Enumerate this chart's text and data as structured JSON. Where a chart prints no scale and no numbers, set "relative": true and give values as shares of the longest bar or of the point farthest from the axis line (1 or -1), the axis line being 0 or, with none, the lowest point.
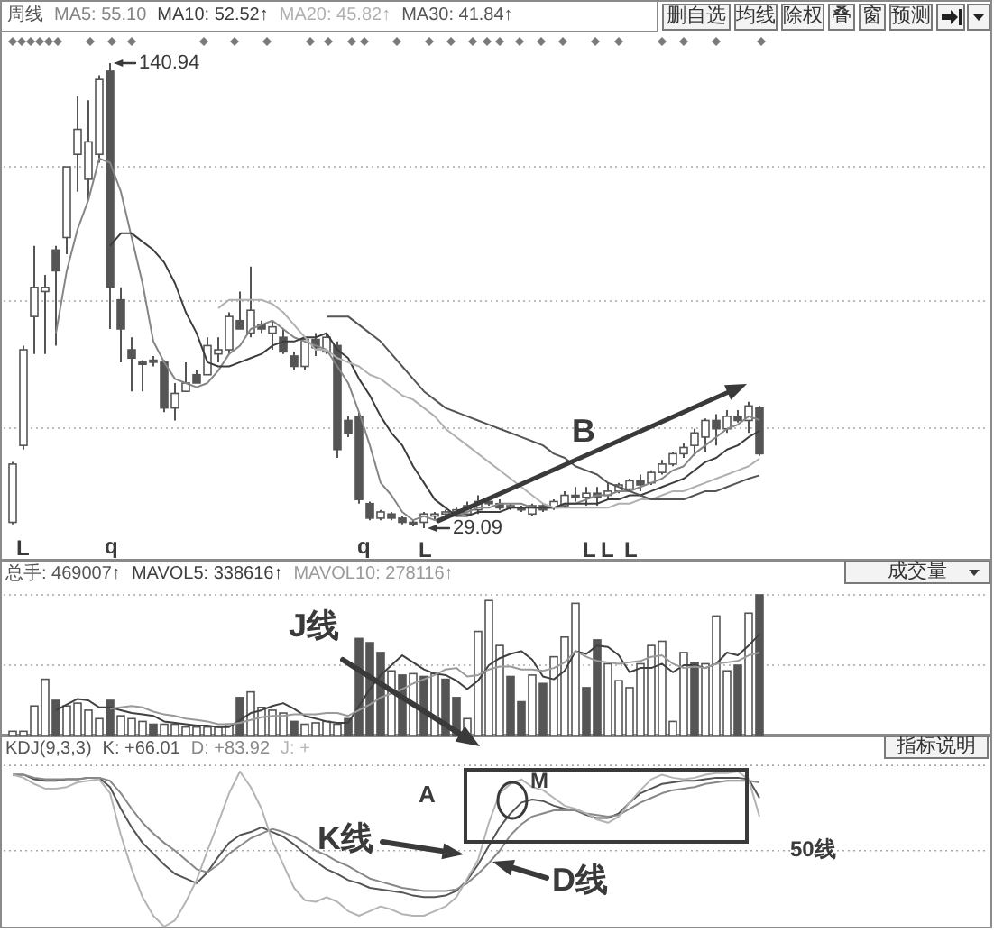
{
  "chart_data": [
    {
      "type": "candlestick",
      "title": "周线",
      "color": "#555555",
      "categories": [
        null,
        null,
        null,
        null,
        null,
        null,
        null,
        null,
        null,
        null,
        null,
        null,
        null,
        null,
        null,
        null,
        null,
        null,
        null,
        null,
        null,
        null,
        null,
        null,
        null,
        null,
        null,
        null,
        null,
        null,
        null,
        null,
        null,
        null,
        null,
        null,
        null,
        null,
        null,
        null,
        null,
        null,
        null,
        null,
        null,
        null,
        null,
        null,
        null,
        null,
        null,
        null,
        null,
        null,
        null,
        null,
        null,
        null,
        null,
        null,
        null,
        null,
        null,
        null,
        null,
        null,
        null,
        null,
        null,
        null
      ],
      "ohlc": [
        [
          30.5,
          45,
          30,
          44.5
        ],
        [
          49,
          73,
          48,
          72
        ],
        [
          80,
          97,
          71,
          87
        ],
        [
          86,
          90,
          71,
          87
        ],
        [
          96,
          97,
          73,
          91
        ],
        [
          99,
          116,
          95,
          116
        ],
        [
          119,
          133,
          110,
          125
        ],
        [
          113,
          132,
          108,
          122
        ],
        [
          119,
          138,
          117,
          137
        ],
        [
          139,
          140.94,
          77,
          87
        ],
        [
          84,
          87,
          69,
          77
        ],
        [
          72,
          75,
          62,
          70
        ],
        [
          69,
          69.5,
          62,
          68.5
        ],
        [
          69.5,
          70.5,
          68,
          69
        ],
        [
          69,
          69.5,
          57,
          58
        ],
        [
          58,
          64,
          55,
          61.5
        ],
        [
          62,
          69,
          62,
          64
        ],
        [
          66,
          67,
          64,
          64
        ],
        [
          66,
          75,
          66,
          73
        ],
        [
          71,
          75,
          69,
          72
        ],
        [
          72,
          81,
          71,
          80
        ],
        [
          79,
          86,
          77,
          77
        ],
        [
          76,
          92,
          75,
          81.5
        ],
        [
          78,
          79,
          76,
          77
        ],
        [
          76,
          79,
          72,
          77.5
        ],
        [
          75,
          77,
          71,
          71.5
        ],
        [
          70.5,
          71.5,
          67,
          68
        ],
        [
          68,
          75,
          67,
          74.5
        ],
        [
          74.5,
          76,
          70.5,
          72.5
        ],
        [
          71.5,
          76,
          71,
          75
        ],
        [
          73,
          74,
          46,
          48
        ],
        [
          55,
          56,
          51,
          52
        ],
        [
          56,
          57,
          35,
          36
        ],
        [
          35,
          35.5,
          31,
          31.5
        ],
        [
          31.5,
          33.5,
          31,
          33
        ],
        [
          32.5,
          33,
          31,
          31.5
        ],
        [
          31.5,
          32,
          30,
          30.5
        ],
        [
          30.5,
          31,
          29.5,
          30
        ],
        [
          30.5,
          33,
          29.09,
          32.5
        ],
        [
          32,
          33,
          31,
          32.5
        ],
        [
          32.5,
          33.5,
          32,
          33
        ],
        [
          33,
          34,
          32.5,
          33.5
        ],
        [
          32.5,
          35.5,
          32,
          34.5
        ],
        [
          33.5,
          37,
          32.5,
          35.5
        ],
        [
          35.5,
          36,
          34.5,
          35
        ],
        [
          35,
          36,
          33.5,
          34
        ],
        [
          34,
          35,
          33.5,
          34.5
        ],
        [
          34,
          34.5,
          33,
          33.5
        ],
        [
          32.5,
          35,
          32,
          34.5
        ],
        [
          34.5,
          35,
          33,
          33.5
        ],
        [
          34,
          36,
          33.5,
          35.5
        ],
        [
          34.5,
          38,
          34,
          37
        ],
        [
          37,
          39,
          35.5,
          36.5
        ],
        [
          36.5,
          39,
          34.5,
          37.5
        ],
        [
          37.5,
          39,
          34.5,
          36.5
        ],
        [
          37,
          40,
          36,
          38
        ],
        [
          38,
          40,
          37.5,
          39.5
        ],
        [
          38.5,
          41,
          38,
          40.5
        ],
        [
          40.5,
          42,
          38,
          39.5
        ],
        [
          40,
          43,
          39.5,
          42.5
        ],
        [
          42.5,
          45.5,
          42,
          44.5
        ],
        [
          44.5,
          47.5,
          44,
          47
        ],
        [
          47,
          49.5,
          46,
          48.5
        ],
        [
          49,
          53,
          46.5,
          52
        ],
        [
          51,
          55.5,
          47.5,
          55
        ],
        [
          55,
          56.5,
          49,
          53
        ],
        [
          53,
          57.5,
          52,
          56
        ],
        [
          56,
          57.5,
          54.5,
          55
        ],
        [
          55,
          59.5,
          52,
          58.5
        ],
        [
          58,
          58.5,
          46.5,
          47
        ]
      ],
      "series": [
        {
          "name": "MA5: 55.10",
          "type": "line",
          "color": "#858585",
          "values": [
            null,
            null,
            null,
            null,
            76,
            91,
            101,
            108,
            118,
            117,
            110,
            99,
            88,
            74,
            69,
            65,
            64,
            63,
            64,
            67,
            71,
            73,
            77,
            78,
            79,
            77,
            75,
            74,
            73,
            72,
            68,
            64,
            57,
            49,
            40,
            37,
            33,
            31,
            32,
            31,
            32,
            32,
            33,
            34,
            34,
            35,
            35,
            35,
            34,
            34,
            34,
            35,
            35,
            36,
            37,
            37,
            38,
            38,
            39,
            40,
            41,
            43,
            44,
            47,
            49,
            51,
            53,
            54,
            56,
            55.1
          ]
        },
        {
          "name": "MA10: 52.52↑",
          "type": "line",
          "color": "#3c3c3c",
          "values": [
            null,
            null,
            null,
            null,
            null,
            null,
            null,
            null,
            null,
            97,
            100,
            100,
            98,
            96,
            93,
            88,
            81,
            76,
            69,
            68,
            68,
            69,
            70,
            71,
            73,
            74,
            74,
            75,
            75,
            76,
            72,
            70,
            65,
            61,
            56,
            52,
            49,
            44,
            40,
            36,
            34,
            32,
            32,
            33,
            33,
            33,
            34,
            34,
            34,
            34,
            34,
            35,
            35,
            35,
            35,
            36,
            36,
            37,
            37,
            38,
            39,
            40,
            41,
            43,
            45,
            46,
            48,
            49,
            51,
            52.5
          ]
        },
        {
          "name": "MA20: 45.82↑",
          "type": "line",
          "color": "#b0b0b0",
          "values": [
            null,
            null,
            null,
            null,
            null,
            null,
            null,
            null,
            null,
            null,
            null,
            null,
            null,
            null,
            null,
            null,
            null,
            null,
            null,
            82,
            84,
            84,
            84,
            84,
            83,
            81,
            78,
            75,
            72,
            72,
            70,
            69,
            68,
            66,
            65,
            63,
            61,
            60,
            58,
            56,
            53,
            51,
            49,
            47,
            45,
            43,
            41,
            39,
            37,
            35,
            34,
            34,
            34,
            34,
            34,
            34,
            35,
            35,
            36,
            36,
            37,
            38,
            38,
            39,
            40,
            41,
            42,
            43,
            44,
            45.8
          ]
        },
        {
          "name": "MA30: 41.84↑",
          "type": "line",
          "color": "#555555",
          "values": [
            null,
            null,
            null,
            null,
            null,
            null,
            null,
            null,
            null,
            null,
            null,
            null,
            null,
            null,
            null,
            null,
            null,
            null,
            null,
            null,
            null,
            null,
            null,
            null,
            null,
            null,
            null,
            null,
            null,
            80,
            80,
            80,
            78,
            76,
            74,
            71,
            68,
            65,
            62,
            60,
            58,
            57,
            56,
            55,
            54,
            53,
            52,
            51,
            50,
            49,
            47,
            46,
            44,
            43,
            42,
            40,
            39,
            38,
            37,
            36,
            36,
            36,
            36,
            37,
            38,
            38,
            39,
            40,
            41,
            41.8
          ]
        }
      ],
      "legend": "top",
      "grid": "y",
      "tick_labels": false,
      "annotations": [
        "140.94",
        "29.09",
        "L",
        "q",
        "q",
        "L",
        "L",
        "L",
        "L",
        "B",
        "删自选",
        "均线",
        "除权",
        "叠",
        "窗",
        "预测"
      ]
    },
    {
      "type": "bar",
      "relative": true,
      "categories": [
        null,
        null,
        null,
        null,
        null,
        null,
        null,
        null,
        null,
        null,
        null,
        null,
        null,
        null,
        null,
        null,
        null,
        null,
        null,
        null,
        null,
        null,
        null,
        null,
        null,
        null,
        null,
        null,
        null,
        null,
        null,
        null,
        null,
        null,
        null,
        null,
        null,
        null,
        null,
        null,
        null,
        null,
        null,
        null,
        null,
        null,
        null,
        null,
        null,
        null,
        null,
        null,
        null,
        null,
        null,
        null,
        null,
        null,
        null,
        null,
        null,
        null,
        null,
        null,
        null,
        null,
        null,
        null,
        null,
        null
      ],
      "series": [
        {
          "name": "总手: 469007↑",
          "color": "#555555",
          "values": [
            0.03,
            0.03,
            0.21,
            0.4,
            0.25,
            0.21,
            0.23,
            0.18,
            0.12,
            0.25,
            0.14,
            0.12,
            0.1,
            0.08,
            0.08,
            0.08,
            0.06,
            0.06,
            0.06,
            0.06,
            0.08,
            0.27,
            0.31,
            0.2,
            0.18,
            0.16,
            0.1,
            0.08,
            0.09,
            0.1,
            0.08,
            0.12,
            0.69,
            0.66,
            0.59,
            0.46,
            0.43,
            0.44,
            0.42,
            0.44,
            0.4,
            0.27,
            0.12,
            0.74,
            0.96,
            0.64,
            0.42,
            0.24,
            0.43,
            0.37,
            0.56,
            0.7,
            0.94,
            0.34,
            0.68,
            0.51,
            0.39,
            0.34,
            0.51,
            0.64,
            0.67,
            0.1,
            0.59,
            0.52,
            0.51,
            0.85,
            0.46,
            0.5,
            0.87,
            1
          ]
        },
        {
          "name": "MAVOL5: 338616↑",
          "type": "line",
          "color": "#404040",
          "values": [
            null,
            null,
            null,
            null,
            0.18,
            0.22,
            0.26,
            0.25,
            0.2,
            0.2,
            0.18,
            0.16,
            0.15,
            0.14,
            0.1,
            0.09,
            0.08,
            0.07,
            0.07,
            0.06,
            0.06,
            0.11,
            0.16,
            0.18,
            0.21,
            0.23,
            0.19,
            0.14,
            0.12,
            0.1,
            0.09,
            0.09,
            0.21,
            0.33,
            0.43,
            0.5,
            0.57,
            0.52,
            0.47,
            0.44,
            0.43,
            0.39,
            0.33,
            0.39,
            0.5,
            0.55,
            0.58,
            0.6,
            0.54,
            0.42,
            0.4,
            0.46,
            0.6,
            0.58,
            0.64,
            0.63,
            0.57,
            0.45,
            0.48,
            0.48,
            0.51,
            0.45,
            0.5,
            0.5,
            0.48,
            0.51,
            0.59,
            0.57,
            0.64,
            0.72
          ]
        },
        {
          "name": "MAVOL10: 278116↑",
          "type": "line",
          "color": "#9a9a9a",
          "values": [
            null,
            null,
            null,
            null,
            null,
            null,
            null,
            null,
            null,
            0.19,
            0.2,
            0.21,
            0.2,
            0.17,
            0.15,
            0.14,
            0.12,
            0.11,
            0.1,
            0.08,
            0.08,
            0.09,
            0.11,
            0.13,
            0.14,
            0.14,
            0.15,
            0.15,
            0.15,
            0.16,
            0.16,
            0.14,
            0.18,
            0.22,
            0.27,
            0.3,
            0.33,
            0.37,
            0.4,
            0.43,
            0.47,
            0.48,
            0.42,
            0.43,
            0.47,
            0.49,
            0.49,
            0.47,
            0.47,
            0.46,
            0.48,
            0.52,
            0.6,
            0.56,
            0.53,
            0.52,
            0.51,
            0.52,
            0.53,
            0.56,
            0.57,
            0.51,
            0.48,
            0.49,
            0.48,
            0.51,
            0.52,
            0.53,
            0.57,
            0.59
          ]
        }
      ],
      "colors": [
        "#ffffff",
        "#ffffff",
        "#ffffff",
        "#ffffff",
        "#555555",
        "#ffffff",
        "#ffffff",
        "#ffffff",
        "#ffffff",
        "#555555",
        "#ffffff",
        "#ffffff",
        "#ffffff",
        "#555555",
        "#ffffff",
        "#ffffff",
        "#ffffff",
        "#ffffff",
        "#ffffff",
        "#ffffff",
        "#ffffff",
        "#555555",
        "#ffffff",
        "#ffffff",
        "#ffffff",
        "#ffffff",
        "#555555",
        "#ffffff",
        "#ffffff",
        "#ffffff",
        "#ffffff",
        "#555555",
        "#555555",
        "#555555",
        "#555555",
        "#ffffff",
        "#555555",
        "#ffffff",
        "#555555",
        "#ffffff",
        "#555555",
        "#555555",
        "#ffffff",
        "#ffffff",
        "#ffffff",
        "#ffffff",
        "#555555",
        "#555555",
        "#ffffff",
        "#555555",
        "#ffffff",
        "#ffffff",
        "#ffffff",
        "#555555",
        "#555555",
        "#ffffff",
        "#ffffff",
        "#ffffff",
        "#ffffff",
        "#ffffff",
        "#ffffff",
        "#ffffff",
        "#ffffff",
        "#555555",
        "#ffffff",
        "#ffffff",
        "#ffffff",
        "#555555",
        "#ffffff",
        "#555555"
      ],
      "ref_lines": [
        {
          "axis": "y",
          "value": 1,
          "color": "#a8a8a8",
          "line_style": "dotted"
        },
        {
          "axis": "y",
          "value": 0.5,
          "color": "#a8a8a8",
          "line_style": "dotted"
        }
      ],
      "legend": "top",
      "annotations": [
        "成交量"
      ]
    },
    {
      "type": "line",
      "title": "KDJ(9,3,3)",
      "relative": true,
      "categories": [
        null,
        null,
        null,
        null,
        null,
        null,
        null,
        null,
        null,
        null,
        null,
        null,
        null,
        null,
        null,
        null,
        null,
        null,
        null,
        null,
        null,
        null,
        null,
        null,
        null,
        null,
        null,
        null,
        null,
        null,
        null,
        null,
        null,
        null,
        null,
        null,
        null,
        null,
        null,
        null,
        null,
        null,
        null,
        null,
        null,
        null,
        null,
        null,
        null,
        null,
        null,
        null,
        null,
        null,
        null,
        null,
        null,
        null,
        null,
        null,
        null,
        null,
        null,
        null,
        null,
        null,
        null,
        null,
        null,
        null
      ],
      "series": [
        {
          "name": "K: +66.01",
          "color": "#555555",
          "values": [
            0.98,
            0.98,
            0.95,
            0.94,
            0.94,
            0.95,
            0.95,
            0.96,
            0.96,
            0.9,
            0.76,
            0.64,
            0.54,
            0.47,
            0.4,
            0.34,
            0.31,
            0.28,
            0.35,
            0.45,
            0.54,
            0.59,
            0.61,
            0.64,
            0.61,
            0.58,
            0.53,
            0.47,
            0.42,
            0.37,
            0.34,
            0.3,
            0.28,
            0.25,
            0.24,
            0.23,
            0.22,
            0.2,
            0.19,
            0.19,
            0.2,
            0.23,
            0.3,
            0.4,
            0.52,
            0.64,
            0.73,
            0.8,
            0.82,
            0.81,
            0.78,
            0.76,
            0.75,
            0.72,
            0.7,
            0.7,
            0.73,
            0.8,
            0.86,
            0.89,
            0.92,
            0.93,
            0.94,
            0.94,
            0.95,
            0.96,
            0.96,
            0.96,
            0.95,
            0.83
          ]
        },
        {
          "name": "D: +83.92",
          "color": "#888888",
          "values": [
            0.98,
            0.98,
            0.96,
            0.95,
            0.95,
            0.95,
            0.95,
            0.96,
            0.96,
            0.94,
            0.86,
            0.76,
            0.67,
            0.6,
            0.54,
            0.49,
            0.43,
            0.37,
            0.35,
            0.4,
            0.47,
            0.52,
            0.57,
            0.6,
            0.63,
            0.61,
            0.58,
            0.54,
            0.49,
            0.46,
            0.42,
            0.39,
            0.35,
            0.31,
            0.29,
            0.27,
            0.25,
            0.24,
            0.23,
            0.23,
            0.23,
            0.24,
            0.28,
            0.34,
            0.41,
            0.49,
            0.59,
            0.66,
            0.71,
            0.73,
            0.75,
            0.75,
            0.75,
            0.73,
            0.72,
            0.71,
            0.72,
            0.76,
            0.8,
            0.83,
            0.86,
            0.88,
            0.89,
            0.9,
            0.92,
            0.93,
            0.94,
            0.94,
            0.94,
            0.93
          ]
        },
        {
          "name": "J: +",
          "color": "#b4b4b4",
          "values": [
            0.98,
            0.96,
            0.92,
            0.89,
            0.89,
            0.9,
            0.93,
            0.94,
            0.95,
            0.86,
            0.59,
            0.37,
            0.19,
            0.07,
            0,
            0.04,
            0.16,
            0.3,
            0.49,
            0.67,
            0.86,
            1,
            0.9,
            0.76,
            0.55,
            0.4,
            0.25,
            0.17,
            0.16,
            0.19,
            0.16,
            0.1,
            0.07,
            0.1,
            0.13,
            0.11,
            0.08,
            0.07,
            0.07,
            0.1,
            0.13,
            0.19,
            0.31,
            0.43,
            0.67,
            0.86,
            0.92,
            0.95,
            0.9,
            0.88,
            0.83,
            0.78,
            0.76,
            0.73,
            0.69,
            0.67,
            0.71,
            0.8,
            0.88,
            0.95,
            0.98,
            0.96,
            0.95,
            0.96,
            0.98,
            0.99,
            0.99,
            1,
            0.95,
            0.71
          ]
        }
      ],
      "ref_lines": [
        {
          "axis": "y",
          "value": 1.04,
          "color": "#a8a8a8",
          "line_style": "dotted"
        },
        {
          "axis": "y",
          "value": 0.49,
          "label": "50线",
          "color": "#a8a8a8",
          "line_style": "dotted"
        }
      ],
      "legend": "top",
      "annotations": [
        "J线",
        "K线",
        "D线",
        "A",
        "M",
        "指标说明"
      ]
    }
  ]
}
